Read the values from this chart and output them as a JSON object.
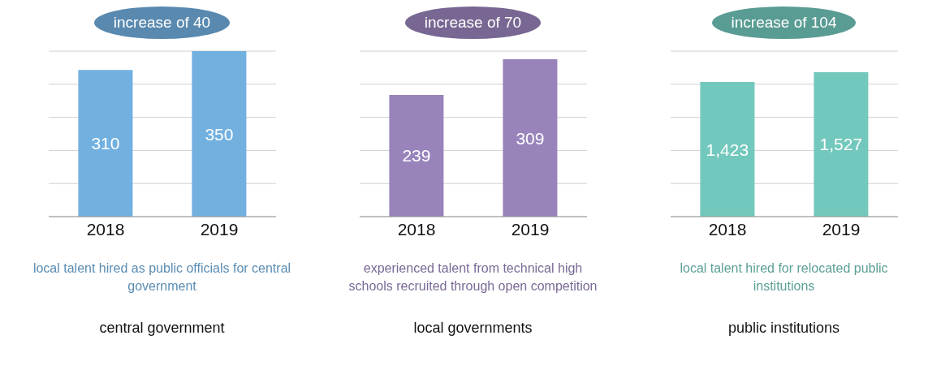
{
  "chart_data": [
    {
      "type": "bar",
      "title": "increase of 40",
      "subtitle": "local talent hired as public officials for central government",
      "annotations": [
        "central government"
      ],
      "categories": [
        "2018",
        "2019"
      ],
      "series": [
        {
          "color": "#72b0e0",
          "values": [
            310,
            350
          ]
        }
      ],
      "data_labels": true,
      "grid": "y"
    },
    {
      "type": "bar",
      "title": "increase of 70",
      "subtitle": "experienced talent from technical high schools recruited through open competition",
      "annotations": [
        "local governments"
      ],
      "categories": [
        "2018",
        "2019"
      ],
      "series": [
        {
          "color": "#9884bb",
          "values": [
            239,
            309
          ]
        }
      ],
      "data_labels": true,
      "grid": "y"
    },
    {
      "type": "bar",
      "title": "increase of 104",
      "subtitle": "local talent hired for relocated public institutions",
      "annotations": [
        "public institutions"
      ],
      "categories": [
        "2018",
        "2019"
      ],
      "series": [
        {
          "color": "#72c8bc",
          "values": [
            1423,
            1527
          ],
          "value_labels": [
            "1,423",
            "1,527"
          ]
        }
      ],
      "grid": "y"
    }
  ]
}
